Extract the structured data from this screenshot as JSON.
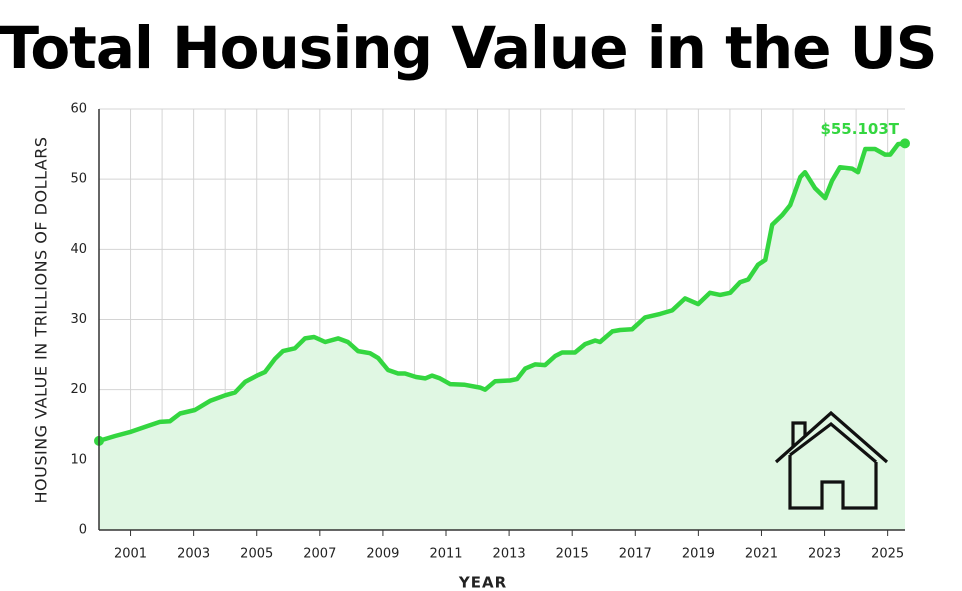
{
  "chart_data": {
    "type": "area-line",
    "title": "Total Housing Value in the US",
    "x_label": "YEAR",
    "y_label": "HOUSING VALUE IN TRILLIONS OF DOLLARS",
    "xlim": [
      2000,
      2025.55
    ],
    "ylim": [
      0,
      60
    ],
    "xticks": [
      2001,
      2003,
      2005,
      2007,
      2009,
      2011,
      2013,
      2015,
      2017,
      2019,
      2021,
      2023,
      2025
    ],
    "xgrid": [
      2000,
      2001,
      2002,
      2003,
      2004,
      2005,
      2006,
      2007,
      2008,
      2009,
      2010,
      2011,
      2012,
      2013,
      2014,
      2015,
      2016,
      2017,
      2018,
      2019,
      2020,
      2021,
      2022,
      2023,
      2024,
      2025
    ],
    "yticks": [
      0,
      10,
      20,
      30,
      40,
      50,
      60
    ],
    "grid": true,
    "color": "#34d640",
    "fill": "#e0f7e3",
    "x": [
      2000.0,
      2000.51,
      2001.01,
      2001.52,
      2001.93,
      2002.25,
      2002.57,
      2003.04,
      2003.52,
      2004.0,
      2004.31,
      2004.63,
      2005.01,
      2005.26,
      2005.58,
      2005.83,
      2006.21,
      2006.53,
      2006.82,
      2007.17,
      2007.58,
      2007.89,
      2008.21,
      2008.59,
      2008.85,
      2009.16,
      2009.48,
      2009.7,
      2010.05,
      2010.34,
      2010.56,
      2010.81,
      2011.13,
      2011.6,
      2012.08,
      2012.24,
      2012.56,
      2013.03,
      2013.25,
      2013.51,
      2013.82,
      2014.14,
      2014.46,
      2014.68,
      2015.09,
      2015.41,
      2015.73,
      2015.88,
      2016.27,
      2016.52,
      2016.9,
      2017.31,
      2017.79,
      2018.17,
      2018.58,
      2018.99,
      2019.37,
      2019.69,
      2020.01,
      2020.32,
      2020.58,
      2020.89,
      2021.12,
      2021.34,
      2021.66,
      2021.91,
      2022.23,
      2022.38,
      2022.7,
      2023.02,
      2023.24,
      2023.49,
      2023.87,
      2024.06,
      2024.29,
      2024.6,
      2024.92,
      2025.08,
      2025.33,
      2025.55
    ],
    "values": [
      12.7,
      13.4,
      14.0,
      14.8,
      15.4,
      15.5,
      16.6,
      17.1,
      18.4,
      19.2,
      19.6,
      21.1,
      22.0,
      22.5,
      24.4,
      25.5,
      25.9,
      27.3,
      27.5,
      26.8,
      27.3,
      26.8,
      25.5,
      25.2,
      24.5,
      22.8,
      22.3,
      22.3,
      21.8,
      21.6,
      22.0,
      21.6,
      20.8,
      20.7,
      20.3,
      20.0,
      21.2,
      21.3,
      21.5,
      23.0,
      23.6,
      23.5,
      24.8,
      25.3,
      25.3,
      26.5,
      27.0,
      26.8,
      28.3,
      28.5,
      28.6,
      30.3,
      30.8,
      31.3,
      33.0,
      32.2,
      33.8,
      33.5,
      33.8,
      35.3,
      35.7,
      37.8,
      38.5,
      43.5,
      44.9,
      46.3,
      50.3,
      51.0,
      48.7,
      47.3,
      49.8,
      51.7,
      51.5,
      51.0,
      54.3,
      54.3,
      53.5,
      53.5,
      55.0,
      55.103
    ],
    "value_labels": [
      null,
      null,
      null,
      null,
      null,
      null,
      null,
      null,
      null,
      null,
      null,
      null,
      null,
      null,
      null,
      null,
      null,
      null,
      null,
      null,
      null,
      null,
      null,
      null,
      null,
      null,
      null,
      null,
      null,
      null,
      null,
      null,
      null,
      null,
      null,
      null,
      null,
      null,
      null,
      null,
      null,
      null,
      null,
      null,
      null,
      null,
      null,
      null,
      null,
      null,
      null,
      null,
      null,
      null,
      null,
      null,
      null,
      null,
      null,
      null,
      null,
      null,
      null,
      null,
      null,
      null,
      null,
      null,
      null,
      null,
      null,
      null,
      null,
      null,
      null,
      null,
      null,
      null,
      null,
      "$55.103T"
    ]
  }
}
